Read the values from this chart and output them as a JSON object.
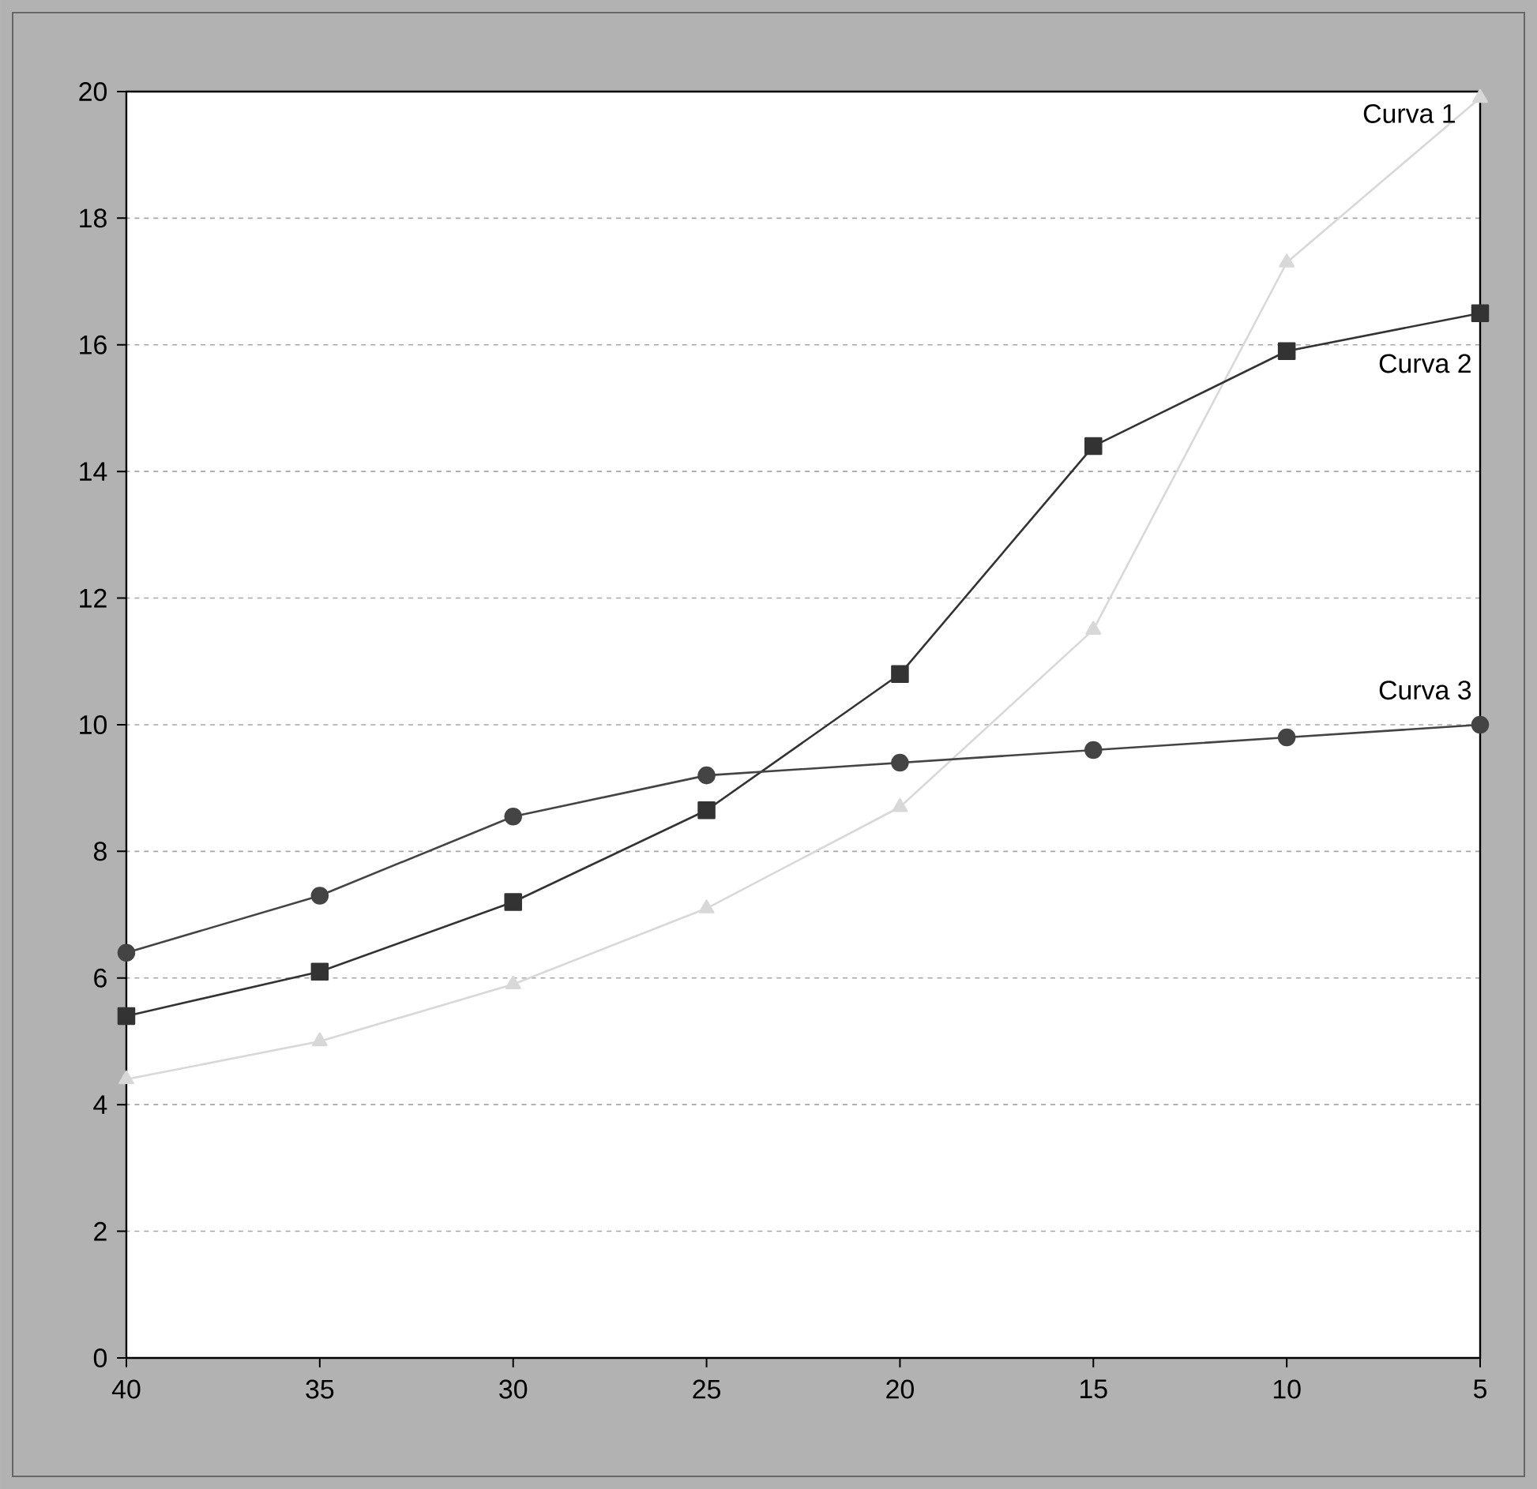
{
  "chart_data": {
    "type": "line",
    "x": [
      40,
      35,
      30,
      25,
      20,
      15,
      10,
      5
    ],
    "series": [
      {
        "name": "Curva 1",
        "color": "#d8d8d8",
        "marker": "triangle",
        "values": [
          4.4,
          5.0,
          5.9,
          7.1,
          8.7,
          11.5,
          17.3,
          19.9
        ]
      },
      {
        "name": "Curva 2",
        "color": "#333333",
        "marker": "square",
        "values": [
          5.4,
          6.1,
          7.2,
          8.65,
          10.8,
          14.4,
          15.9,
          16.5
        ]
      },
      {
        "name": "Curva 3",
        "color": "#444444",
        "marker": "circle",
        "values": [
          6.4,
          7.3,
          8.55,
          9.2,
          9.4,
          9.6,
          9.8,
          10.0
        ]
      }
    ],
    "xlim": [
      40,
      5
    ],
    "ylim": [
      0,
      20
    ],
    "xticks": [
      40,
      35,
      30,
      25,
      20,
      15,
      10,
      5
    ],
    "yticks": [
      0,
      2,
      4,
      6,
      8,
      10,
      12,
      14,
      16,
      18,
      20
    ],
    "grid": "y",
    "legend": false,
    "line_style": "solid"
  }
}
